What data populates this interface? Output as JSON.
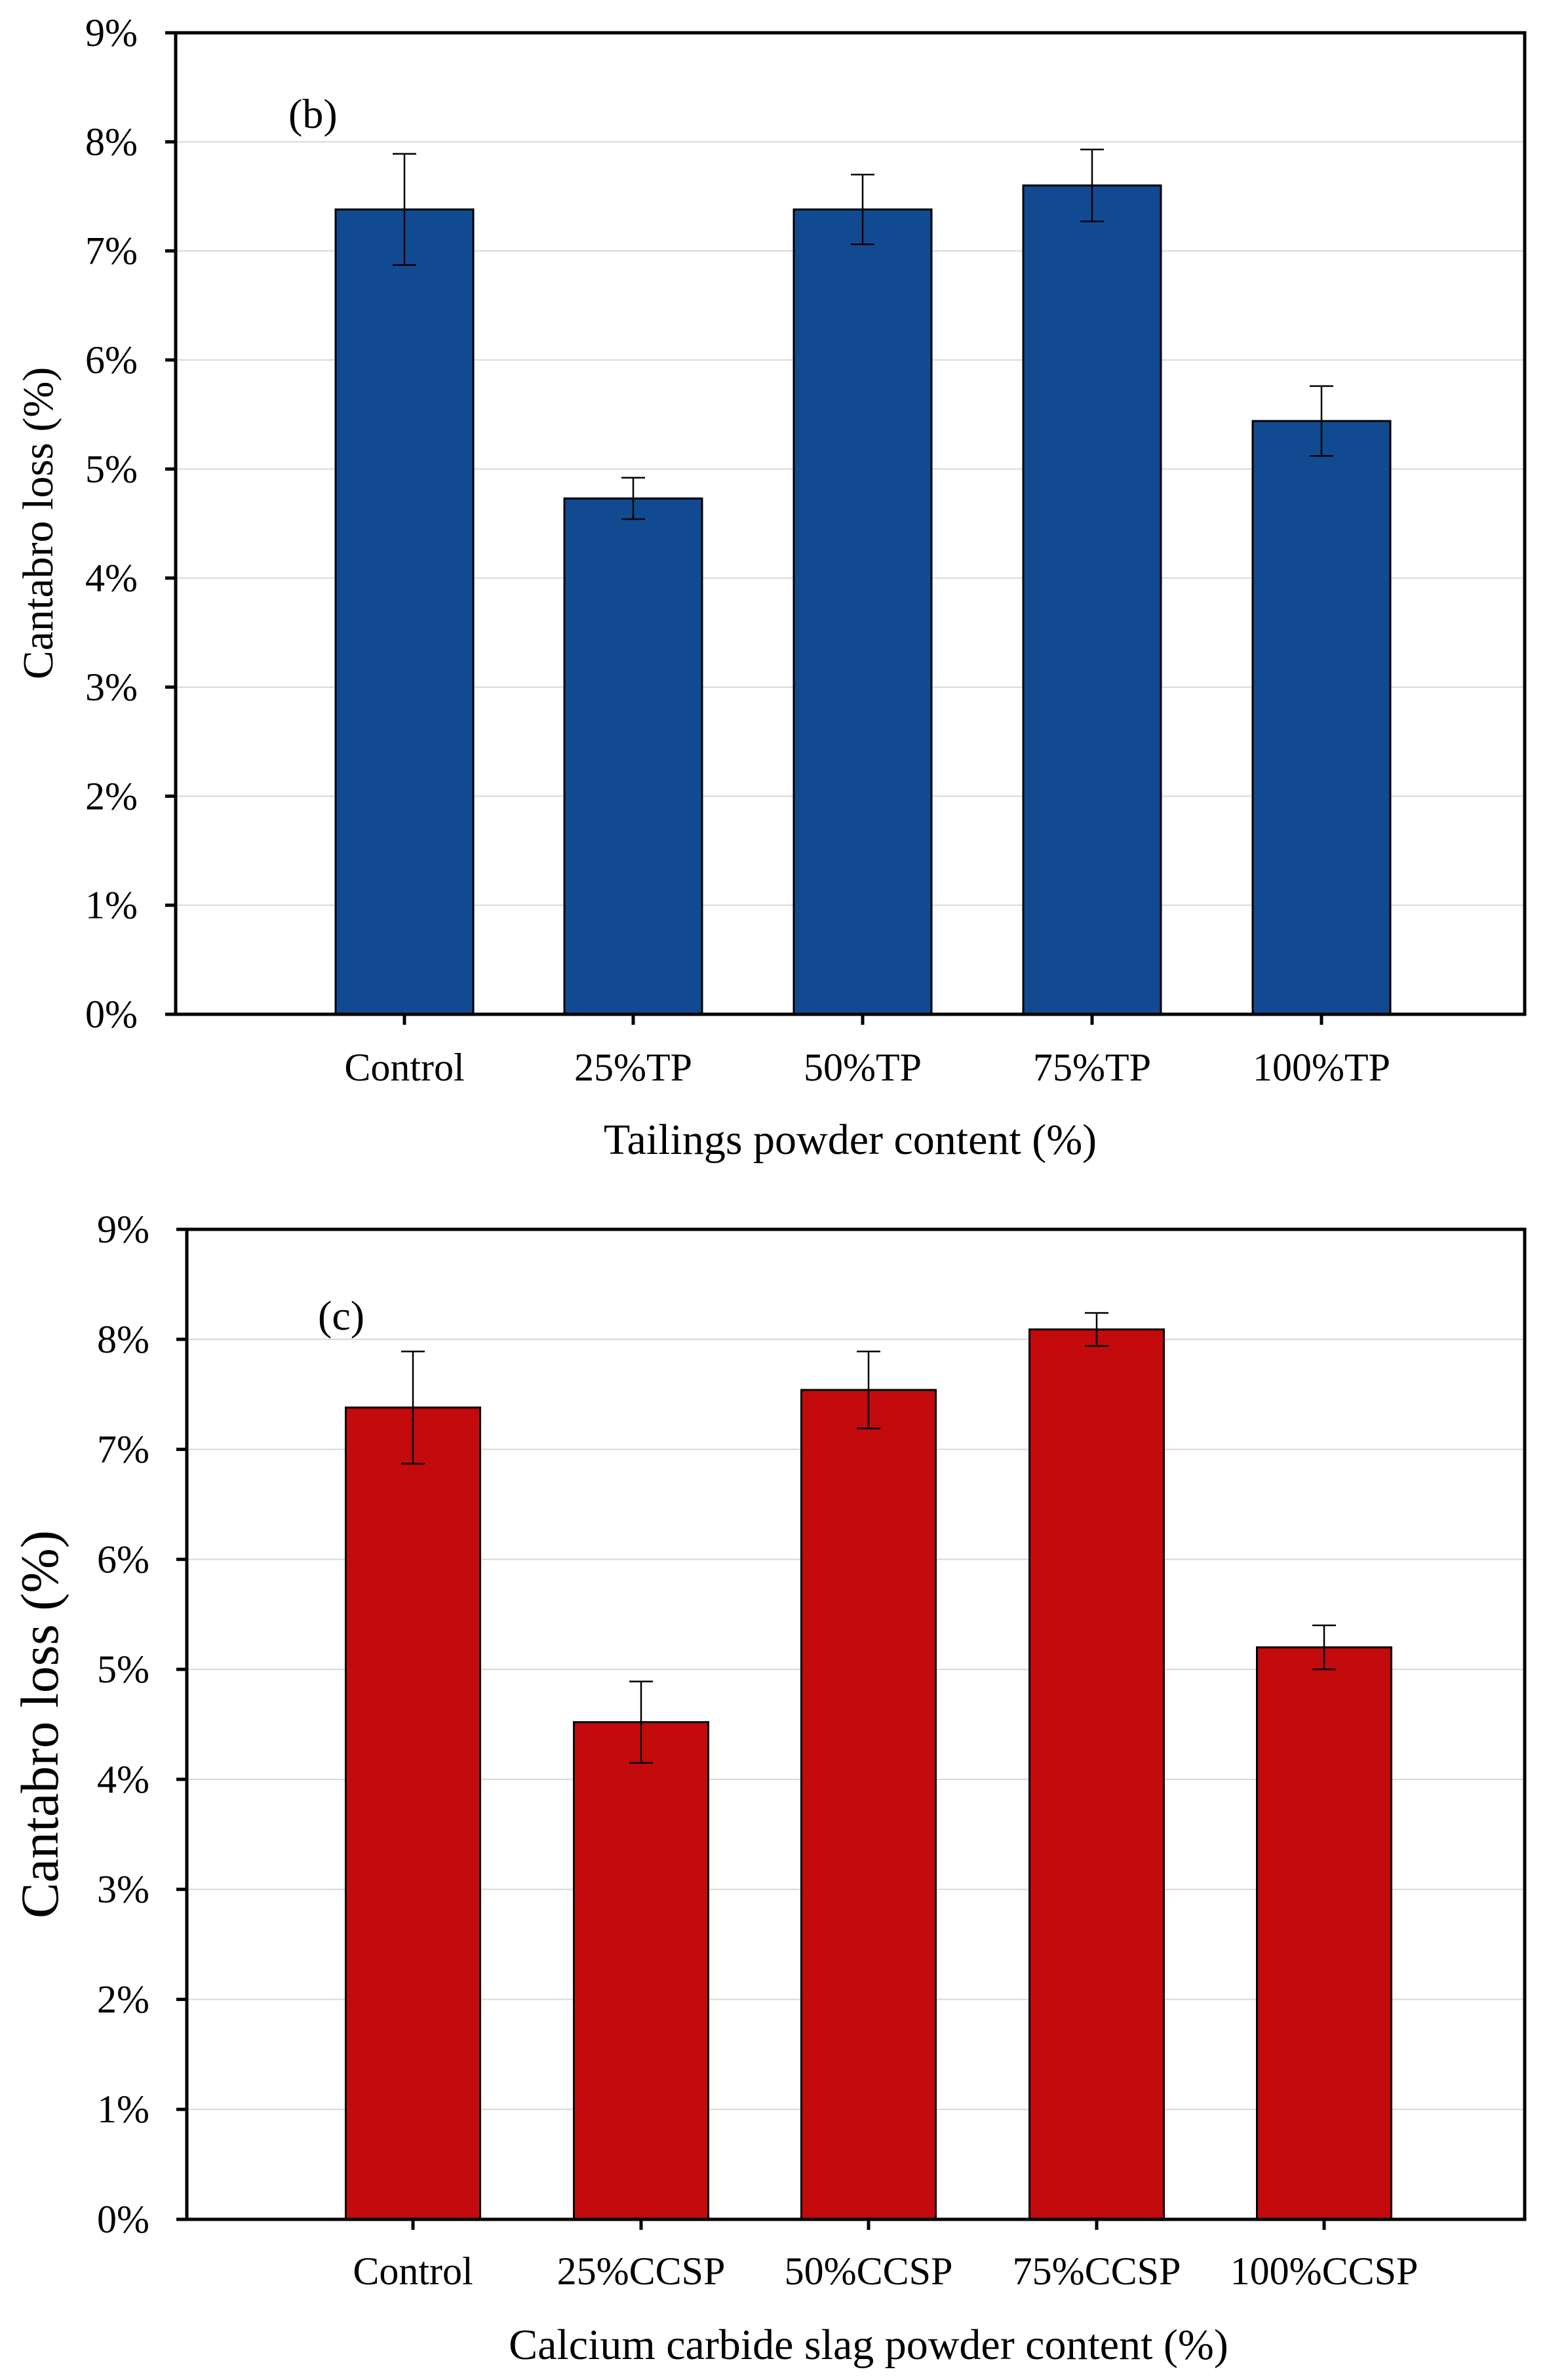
{
  "chart_data": [
    {
      "type": "bar",
      "panel_label": "(b)",
      "categories": [
        "Control",
        "25%TP",
        "50%TP",
        "75%TP",
        "100%TP"
      ],
      "values": [
        7.38,
        4.73,
        7.38,
        7.6,
        5.44
      ],
      "errors": [
        0.51,
        0.19,
        0.32,
        0.33,
        0.32
      ],
      "xlabel": "Tailings powder content (%)",
      "ylabel": "Cantabro loss (%)",
      "ylim": [
        0,
        9
      ],
      "yticks": [
        0,
        1,
        2,
        3,
        4,
        5,
        6,
        7,
        8,
        9
      ],
      "ytick_labels": [
        "0%",
        "1%",
        "2%",
        "3%",
        "4%",
        "5%",
        "6%",
        "7%",
        "8%",
        "9%"
      ],
      "bar_color": "#124a92",
      "grid": true
    },
    {
      "type": "bar",
      "panel_label": "(c)",
      "categories": [
        "Control",
        "25%CCSP",
        "50%CCSP",
        "75%CCSP",
        "100%CCSP"
      ],
      "values": [
        7.38,
        4.52,
        7.54,
        8.09,
        5.2
      ],
      "errors": [
        0.51,
        0.37,
        0.35,
        0.15,
        0.2
      ],
      "xlabel": "Calcium carbide slag powder content (%)",
      "ylabel": "Cantabro loss (%)",
      "ylim": [
        0,
        9
      ],
      "yticks": [
        0,
        1,
        2,
        3,
        4,
        5,
        6,
        7,
        8,
        9
      ],
      "ytick_labels": [
        "0%",
        "1%",
        "2%",
        "3%",
        "4%",
        "5%",
        "6%",
        "7%",
        "8%",
        "9%"
      ],
      "bar_color": "#c30a0c",
      "grid": true
    }
  ]
}
